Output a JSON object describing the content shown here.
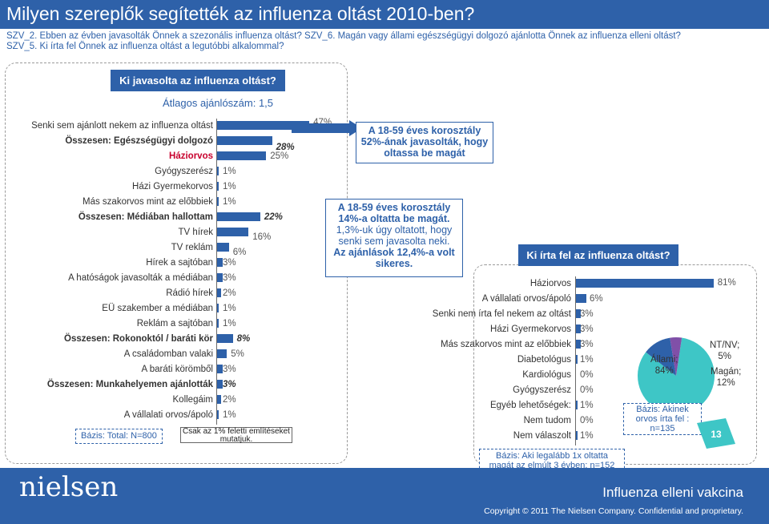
{
  "header": {
    "title": "Milyen szereplők segítették az influenza oltást 2010-ben?",
    "subtitle": "SZV_2. Ebben az évben javasolták Önnek a szezonális influenza oltást? SZV_6. Magán vagy állami egészségügyi dolgozó ajánlotta Önnek az influenza elleni oltást? SZV_5. Ki írta fel Önnek az influenza oltást a legutóbbi alkalommal?"
  },
  "left_panel": {
    "heading": "Ki javasolta az influenza oltást?",
    "average": "Átlagos ajánlószám: 1,5",
    "basis": "Bázis: Total: N=800",
    "note": "Csak az 1% feletti említéseket mutatjuk."
  },
  "callouts": {
    "c1": "A 18-59 éves korosztály 52%-ának javasolták, hogy oltassa be magát",
    "c2_bold": "A 18-59 éves korosztály 14%-a oltatta be magát.",
    "c2_text": "1,3%-uk úgy oltatott, hogy senki sem javasolta neki.",
    "c2_bold2": "Az ajánlások 12,4%-a volt sikeres."
  },
  "right_panel": {
    "heading": "Ki írta fel az influenza oltást?",
    "basis": "Bázis: Aki legalább 1x oltatta magát az elmúlt 3 évben: n=152"
  },
  "pie": {
    "basis": "Bázis: Akinek orvos írta fel : n=135",
    "labels": [
      {
        "name": "Állami;",
        "pct": "84%"
      },
      {
        "name": "NT/NV;",
        "pct": "5%"
      },
      {
        "name": "Magán;",
        "pct": "12%"
      }
    ],
    "colors": [
      "#3ec6c6",
      "#8050a8",
      "#2e61a9"
    ]
  },
  "page_number": "13",
  "footer": {
    "logo": "nielsen",
    "title": "Influenza elleni vakcina",
    "copyright": "Copyright © 2011 The Nielsen Company. Confidential and proprietary."
  },
  "colors": {
    "brand": "#2e61a9",
    "highlight": "#c8002d",
    "pie_state": "#3ec6c6",
    "pie_nt": "#8050a8"
  },
  "chart_data": [
    {
      "type": "bar",
      "orientation": "horizontal",
      "title": "Ki javasolta az influenza oltást?",
      "categories": [
        {
          "label": "Senki sem ajánlott nekem az influenza oltást",
          "value": 47,
          "display": "47%",
          "style": "normal"
        },
        {
          "label": "Összesen: Egészségügyi dolgozó",
          "value": 28,
          "display": "28%",
          "style": "bold"
        },
        {
          "label": "Háziorvos",
          "value": 25,
          "display": "25%",
          "style": "red"
        },
        {
          "label": "Gyógyszerész",
          "value": 1,
          "display": "1%",
          "style": "normal"
        },
        {
          "label": "Házi Gyermekorvos",
          "value": 1,
          "display": "1%",
          "style": "normal"
        },
        {
          "label": "Más szakorvos mint az előbbiek",
          "value": 1,
          "display": "1%",
          "style": "normal"
        },
        {
          "label": "Összesen: Médiában hallottam",
          "value": 22,
          "display": "22%",
          "style": "bold"
        },
        {
          "label": "TV hírek",
          "value": 16,
          "display": "16%",
          "style": "normal"
        },
        {
          "label": "TV reklám",
          "value": 6,
          "display": "6%",
          "style": "normal"
        },
        {
          "label": "Hírek a sajtóban",
          "value": 3,
          "display": "3%",
          "style": "normal"
        },
        {
          "label": "A hatóságok javasolták a médiában",
          "value": 3,
          "display": "3%",
          "style": "normal"
        },
        {
          "label": "Rádió hírek",
          "value": 2,
          "display": "2%",
          "style": "normal"
        },
        {
          "label": "EÜ szakember a médiában",
          "value": 1,
          "display": "1%",
          "style": "normal"
        },
        {
          "label": "Reklám a sajtóban",
          "value": 1,
          "display": "1%",
          "style": "normal"
        },
        {
          "label": "Összesen: Rokonoktól / baráti kör",
          "value": 8,
          "display": "8%",
          "style": "bold"
        },
        {
          "label": "A családomban valaki",
          "value": 5,
          "display": "5%",
          "style": "normal"
        },
        {
          "label": "A baráti körömből",
          "value": 3,
          "display": "3%",
          "style": "normal"
        },
        {
          "label": "Összesen: Munkahelyemen ajánlották",
          "value": 3,
          "display": "3%",
          "style": "bold"
        },
        {
          "label": "Kollegáim",
          "value": 2,
          "display": "2%",
          "style": "normal"
        },
        {
          "label": "A vállalati orvos/ápoló",
          "value": 1,
          "display": "1%",
          "style": "normal"
        }
      ],
      "xlim": [
        0,
        100
      ]
    },
    {
      "type": "bar",
      "orientation": "horizontal",
      "title": "Ki írta fel az influenza oltást?",
      "categories": [
        {
          "label": "Háziorvos",
          "value": 81,
          "display": "81%"
        },
        {
          "label": "A vállalati orvos/ápoló",
          "value": 6,
          "display": "6%"
        },
        {
          "label": "Senki nem írta fel nekem az oltást",
          "value": 3,
          "display": "3%"
        },
        {
          "label": "Házi Gyermekorvos",
          "value": 3,
          "display": "3%"
        },
        {
          "label": "Más szakorvos mint az előbbiek",
          "value": 3,
          "display": "3%"
        },
        {
          "label": "Diabetológus",
          "value": 1,
          "display": "1%"
        },
        {
          "label": "Kardiológus",
          "value": 0,
          "display": "0%"
        },
        {
          "label": "Gyógyszerész",
          "value": 0,
          "display": "0%"
        },
        {
          "label": "Egyéb lehetőségek:",
          "value": 1,
          "display": "1%"
        },
        {
          "label": "Nem tudom",
          "value": 0,
          "display": "0%"
        },
        {
          "label": "Nem válaszolt",
          "value": 1,
          "display": "1%"
        }
      ],
      "xlim": [
        0,
        100
      ]
    },
    {
      "type": "pie",
      "title": "",
      "slices": [
        {
          "label": "Állami",
          "value": 84
        },
        {
          "label": "NT/NV",
          "value": 5
        },
        {
          "label": "Magán",
          "value": 12
        }
      ]
    }
  ]
}
